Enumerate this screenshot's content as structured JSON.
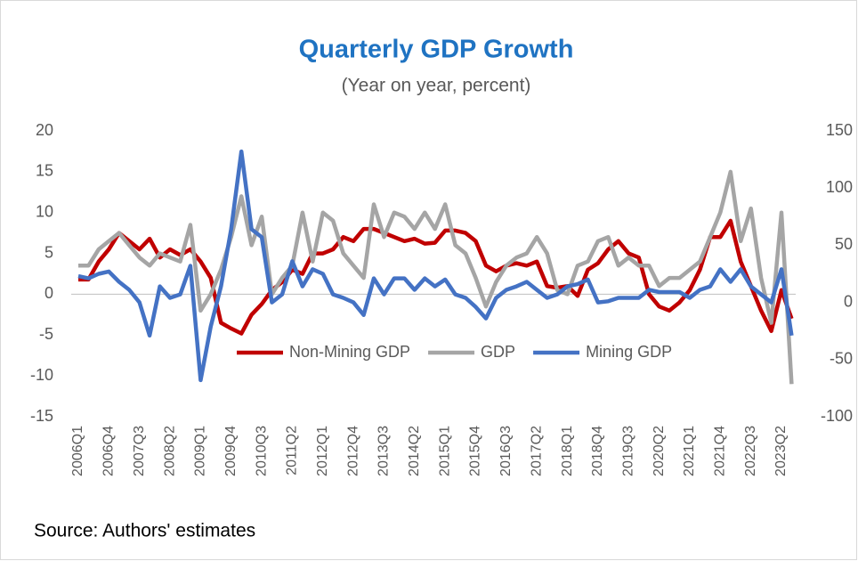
{
  "chart_data": {
    "type": "line",
    "title": "Quarterly GDP Growth",
    "subtitle": "(Year on year, percent)",
    "source": "Source: Authors' estimates",
    "categories": [
      "2006Q1",
      null,
      null,
      "2006Q4",
      null,
      null,
      "2007Q3",
      null,
      null,
      "2008Q2",
      null,
      null,
      "2009Q1",
      null,
      null,
      "2009Q4",
      null,
      null,
      "2010Q3",
      null,
      null,
      "2011Q2",
      null,
      null,
      "2012Q1",
      null,
      null,
      "2012Q4",
      null,
      null,
      "2013Q3",
      null,
      null,
      "2014Q2",
      null,
      null,
      "2015Q1",
      null,
      null,
      "2015Q4",
      null,
      null,
      "2016Q3",
      null,
      null,
      "2017Q2",
      null,
      null,
      "2018Q1",
      null,
      null,
      "2018Q4",
      null,
      null,
      "2019Q3",
      null,
      null,
      "2020Q2",
      null,
      null,
      "2021Q1",
      null,
      null,
      "2021Q4",
      null,
      null,
      "2022Q3",
      null,
      null,
      "2023Q2",
      null
    ],
    "series": [
      {
        "name": "Non-Mining GDP",
        "color": "#c00000",
        "values": [
          1.8,
          1.8,
          4,
          5.5,
          7.5,
          6.5,
          5.5,
          6.8,
          4.5,
          5.5,
          4.8,
          5.5,
          4,
          2,
          -3.5,
          -4.2,
          -4.8,
          -2.5,
          -1.2,
          0.5,
          1.5,
          3,
          2.5,
          5,
          5,
          5.5,
          7,
          6.5,
          8,
          8,
          7.5,
          7,
          6.5,
          6.8,
          6.2,
          6.3,
          7.8,
          7.8,
          7.5,
          6.5,
          3.5,
          2.8,
          3.5,
          3.8,
          3.5,
          4,
          1,
          0.8,
          1,
          -0.2,
          3,
          3.8,
          5.5,
          6.5,
          5,
          4.5,
          0,
          -1.5,
          -2,
          -1,
          0.5,
          3,
          7,
          7,
          9,
          4,
          1,
          -2,
          -4.5,
          0.5,
          -3
        ]
      },
      {
        "name": "GDP",
        "color": "#a5a5a5",
        "values": [
          3.5,
          3.5,
          5.5,
          6.5,
          7.5,
          6,
          4.5,
          3.5,
          5,
          4.5,
          4,
          8.5,
          -2,
          0,
          3,
          7,
          12,
          6,
          9.5,
          0,
          2,
          3.5,
          10,
          4,
          10,
          9,
          5,
          3.5,
          2,
          11,
          7,
          10,
          9.5,
          8,
          10,
          8,
          11,
          6,
          5,
          2,
          -1.5,
          1.5,
          3.5,
          4.5,
          5,
          7,
          5,
          0.5,
          0,
          3.5,
          4,
          6.5,
          7,
          3.5,
          4.5,
          3.5,
          3.5,
          1,
          2,
          2,
          3,
          4,
          7,
          10,
          15,
          6.5,
          10.5,
          2,
          -3.5,
          10,
          -11
        ]
      },
      {
        "name": "Mining GDP",
        "color": "#4472c4",
        "axis": "y2",
        "values": [
          23,
          21,
          25,
          27,
          18,
          11,
          0,
          -29,
          14,
          4,
          7,
          32,
          -68,
          -21,
          14,
          64,
          132,
          64,
          57,
          0,
          7,
          36,
          14,
          29,
          25,
          7,
          4,
          0,
          -11,
          21,
          7,
          21,
          21,
          11,
          21,
          14,
          20,
          7,
          4,
          -4,
          -14,
          4,
          11,
          14,
          18,
          11,
          4,
          7,
          14,
          16,
          20,
          0,
          1,
          4,
          4,
          4,
          11,
          9,
          9,
          9,
          4,
          11,
          14,
          29,
          18,
          29,
          14,
          7,
          0,
          29,
          -29
        ]
      }
    ],
    "ylim": [
      -15,
      20
    ],
    "yticks": [
      -15,
      -10,
      -5,
      0,
      5,
      10,
      15,
      20
    ],
    "y2lim": [
      -100,
      150
    ],
    "y2ticks": [
      -100,
      -50,
      0,
      50,
      100,
      150
    ]
  }
}
